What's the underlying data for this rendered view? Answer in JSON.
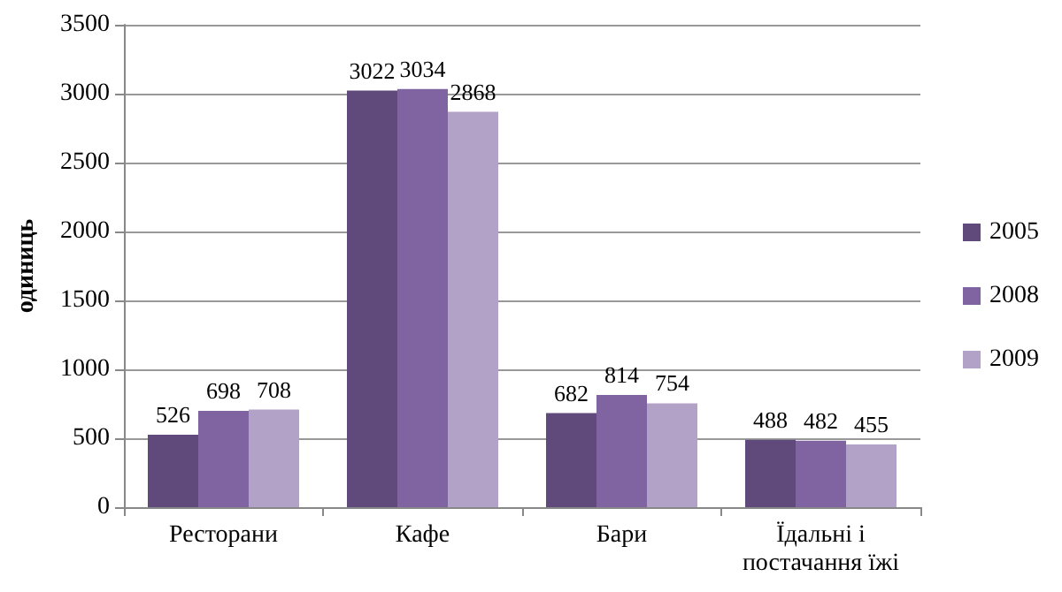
{
  "chart_data": {
    "type": "bar",
    "ylabel": "одиниць",
    "categories": [
      "Ресторани",
      "Кафе",
      "Бари",
      "Їдальні і постачання їжі"
    ],
    "series": [
      {
        "name": "2005",
        "color": "#604a7b",
        "values": [
          526,
          3022,
          682,
          488
        ]
      },
      {
        "name": "2008",
        "color": "#8064a2",
        "values": [
          698,
          3034,
          814,
          482
        ]
      },
      {
        "name": "2009",
        "color": "#b3a2c7",
        "values": [
          708,
          2868,
          754,
          455
        ]
      }
    ],
    "ylim": [
      0,
      3500
    ],
    "yticks": [
      0,
      500,
      1000,
      1500,
      2000,
      2500,
      3000,
      3500
    ],
    "grid": "y",
    "legend": "right",
    "data_labels": true
  }
}
